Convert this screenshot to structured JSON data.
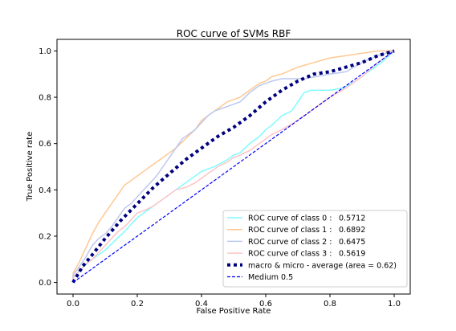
{
  "chart_data": {
    "type": "line",
    "title": "ROC curve of SVMs RBF",
    "xlabel": "False Positive Rate",
    "ylabel": "True Positive rate",
    "xlim": [
      -0.05,
      1.05
    ],
    "ylim": [
      -0.05,
      1.05
    ],
    "xticks": [
      "0.0",
      "0.2",
      "0.4",
      "0.6",
      "0.8",
      "1.0"
    ],
    "yticks": [
      "0.0",
      "0.2",
      "0.4",
      "0.6",
      "0.8",
      "1.0"
    ],
    "grid": false,
    "legend_position": "lower-right",
    "series": [
      {
        "name": "ROC curve of class 0 :",
        "value_label": "0.5712",
        "color": "#7ffcff",
        "style": "solid",
        "x": [
          0.0,
          0.0,
          0.02,
          0.05,
          0.08,
          0.1,
          0.13,
          0.16,
          0.2,
          0.24,
          0.28,
          0.32,
          0.36,
          0.4,
          0.44,
          0.48,
          0.5,
          0.52,
          0.55,
          0.58,
          0.6,
          0.62,
          0.65,
          0.68,
          0.7,
          0.72,
          0.74,
          0.76,
          0.8,
          0.84,
          0.88,
          0.92,
          0.96,
          1.0
        ],
        "y": [
          0.0,
          0.02,
          0.05,
          0.09,
          0.12,
          0.14,
          0.18,
          0.22,
          0.28,
          0.32,
          0.36,
          0.4,
          0.44,
          0.48,
          0.5,
          0.53,
          0.55,
          0.56,
          0.6,
          0.63,
          0.66,
          0.68,
          0.72,
          0.74,
          0.78,
          0.82,
          0.83,
          0.83,
          0.83,
          0.84,
          0.87,
          0.91,
          0.95,
          1.0
        ]
      },
      {
        "name": "ROC curve of class 1 :",
        "value_label": "0.6892",
        "color": "#ffc892",
        "style": "solid",
        "x": [
          0.0,
          0.0,
          0.02,
          0.04,
          0.06,
          0.08,
          0.1,
          0.12,
          0.14,
          0.16,
          0.18,
          0.2,
          0.22,
          0.25,
          0.28,
          0.3,
          0.32,
          0.35,
          0.38,
          0.4,
          0.42,
          0.45,
          0.48,
          0.5,
          0.52,
          0.55,
          0.58,
          0.6,
          0.62,
          0.65,
          0.7,
          0.75,
          0.8,
          0.85,
          0.9,
          0.95,
          1.0
        ],
        "y": [
          0.0,
          0.04,
          0.09,
          0.15,
          0.21,
          0.26,
          0.3,
          0.34,
          0.38,
          0.42,
          0.44,
          0.46,
          0.48,
          0.51,
          0.54,
          0.56,
          0.58,
          0.62,
          0.66,
          0.7,
          0.72,
          0.75,
          0.78,
          0.79,
          0.8,
          0.83,
          0.86,
          0.87,
          0.89,
          0.9,
          0.93,
          0.95,
          0.97,
          0.98,
          0.99,
          1.0,
          1.0
        ]
      },
      {
        "name": "ROC curve of class 2 :",
        "value_label": "0.6475",
        "color": "#bcc8ef",
        "style": "solid",
        "x": [
          0.0,
          0.0,
          0.02,
          0.04,
          0.06,
          0.08,
          0.1,
          0.12,
          0.14,
          0.16,
          0.18,
          0.2,
          0.22,
          0.24,
          0.26,
          0.28,
          0.3,
          0.32,
          0.34,
          0.36,
          0.38,
          0.4,
          0.42,
          0.44,
          0.46,
          0.48,
          0.5,
          0.52,
          0.55,
          0.58,
          0.6,
          0.62,
          0.65,
          0.68,
          0.72,
          0.76,
          0.8,
          0.85,
          0.9,
          0.95,
          1.0
        ],
        "y": [
          0.0,
          0.03,
          0.07,
          0.11,
          0.16,
          0.19,
          0.21,
          0.24,
          0.28,
          0.32,
          0.34,
          0.37,
          0.4,
          0.43,
          0.46,
          0.5,
          0.54,
          0.58,
          0.62,
          0.64,
          0.66,
          0.69,
          0.72,
          0.74,
          0.75,
          0.76,
          0.77,
          0.78,
          0.82,
          0.85,
          0.86,
          0.87,
          0.88,
          0.88,
          0.88,
          0.89,
          0.9,
          0.91,
          0.95,
          0.98,
          1.0
        ]
      },
      {
        "name": "ROC curve of class 3 :",
        "value_label": "0.5619",
        "color": "#ffc4c4",
        "style": "solid",
        "x": [
          0.0,
          0.0,
          0.02,
          0.04,
          0.06,
          0.08,
          0.1,
          0.12,
          0.14,
          0.16,
          0.18,
          0.2,
          0.22,
          0.25,
          0.28,
          0.3,
          0.32,
          0.35,
          0.38,
          0.4,
          0.42,
          0.45,
          0.48,
          0.5,
          0.52,
          0.55,
          0.58,
          0.6,
          0.62,
          0.65,
          0.7,
          0.75,
          0.8,
          0.85,
          0.9,
          0.95,
          1.0
        ],
        "y": [
          0.0,
          0.02,
          0.05,
          0.08,
          0.1,
          0.13,
          0.16,
          0.19,
          0.22,
          0.24,
          0.27,
          0.3,
          0.31,
          0.33,
          0.36,
          0.38,
          0.4,
          0.41,
          0.43,
          0.45,
          0.47,
          0.5,
          0.52,
          0.54,
          0.55,
          0.57,
          0.6,
          0.62,
          0.64,
          0.66,
          0.7,
          0.75,
          0.8,
          0.84,
          0.89,
          0.95,
          1.0
        ]
      },
      {
        "name": "macro & micro - average (area = 0.62)",
        "color": "#000080",
        "style": "dotted",
        "x": [
          0.0,
          0.03,
          0.06,
          0.1,
          0.15,
          0.2,
          0.25,
          0.3,
          0.35,
          0.4,
          0.45,
          0.5,
          0.55,
          0.6,
          0.65,
          0.7,
          0.75,
          0.8,
          0.85,
          0.9,
          0.95,
          1.0
        ],
        "y": [
          0.0,
          0.07,
          0.12,
          0.19,
          0.27,
          0.34,
          0.41,
          0.47,
          0.53,
          0.58,
          0.63,
          0.67,
          0.72,
          0.78,
          0.83,
          0.87,
          0.9,
          0.91,
          0.93,
          0.95,
          0.98,
          1.0
        ]
      },
      {
        "name": "Medium 0.5",
        "color": "#0000ff",
        "style": "dashed",
        "x": [
          0.0,
          1.0
        ],
        "y": [
          0.0,
          1.0
        ]
      }
    ]
  }
}
